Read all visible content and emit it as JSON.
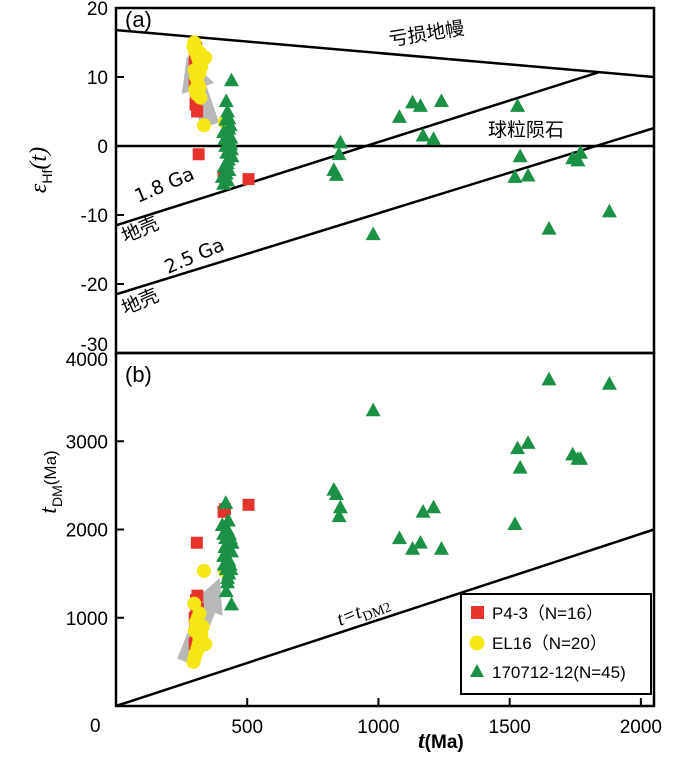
{
  "chart_data": [
    {
      "type": "scatter",
      "panel_label": "(a)",
      "xlim": [
        0,
        2050
      ],
      "ylim": [
        -30,
        20
      ],
      "yticks": [
        20,
        10,
        0,
        -10,
        -20,
        -30
      ],
      "ylabel": {
        "main": "ε",
        "sub": "Hf",
        "paren": "(t)"
      },
      "reference_lines": [
        {
          "id": "depleted-mantle",
          "label": "亏损地幔",
          "x": [
            0,
            2050
          ],
          "y": [
            16.8,
            10.0
          ]
        },
        {
          "id": "chur",
          "label": "球粒陨石",
          "x": [
            0,
            2050
          ],
          "y": [
            0,
            0
          ]
        },
        {
          "id": "crust-1-8",
          "label": "1.8 Ga",
          "label2": "地壳",
          "x": [
            0,
            1840
          ],
          "y": [
            -11.5,
            10.7
          ]
        },
        {
          "id": "crust-2-5",
          "label": "2.5 Ga",
          "label2": "地壳",
          "x": [
            0,
            2050
          ],
          "y": [
            -21.5,
            2.6
          ]
        }
      ],
      "series": [
        {
          "name": "P4-3（N=16）",
          "marker": "square",
          "color": "#e8332d",
          "x": [
            302,
            305,
            308,
            300,
            306,
            303,
            309,
            305,
            310,
            315,
            410,
            505,
            305,
            308,
            300,
            304
          ],
          "y": [
            13.5,
            12,
            11,
            9,
            7,
            6,
            5,
            10,
            8,
            -1.2,
            -4.3,
            -4.8,
            14.2,
            8.5,
            12.5,
            6.8
          ]
        },
        {
          "name": "EL16（N=20）",
          "marker": "circle",
          "color": "#f5e616",
          "x": [
            295,
            300,
            305,
            310,
            315,
            320,
            325,
            300,
            330,
            305,
            312,
            318,
            308,
            322,
            302,
            335,
            340,
            415,
            298,
            318
          ],
          "y": [
            14.5,
            13.8,
            14.2,
            13,
            12.5,
            13.5,
            11.5,
            11,
            12.8,
            10,
            9,
            8.5,
            7.5,
            7,
            8.2,
            3,
            12.8,
            3.5,
            15,
            10.5
          ],
          "note": "yellow circles overlap the red squares near 300 Ma"
        },
        {
          "name": "170712-12(N=45)",
          "marker": "triangle",
          "color": "#1a9144",
          "x": [
            440,
            420,
            425,
            430,
            435,
            410,
            415,
            418,
            422,
            428,
            432,
            436,
            440,
            412,
            420,
            425,
            430,
            438,
            442,
            418,
            424,
            430,
            436,
            405,
            410,
            830,
            840,
            855,
            850,
            980,
            1080,
            1130,
            1160,
            1170,
            1210,
            1240,
            1530,
            1540,
            1520,
            1570,
            1650,
            1740,
            1760,
            1770,
            1880
          ],
          "y": [
            9.5,
            6.5,
            5,
            4,
            3,
            2,
            1,
            0,
            -1,
            -2,
            1.5,
            0.5,
            -0.5,
            -3,
            -4,
            -5,
            2.5,
            1.2,
            -1.5,
            3.8,
            -2.5,
            -3.5,
            0.2,
            -4.5,
            -5.5,
            -3.5,
            -4.2,
            0.5,
            -1.2,
            -12.8,
            4.2,
            6.3,
            5.8,
            1.5,
            1.0,
            6.5,
            5.8,
            -1.5,
            -4.5,
            -4.3,
            -12,
            -1.8,
            -2.1,
            -1.0,
            -9.5
          ]
        }
      ],
      "trend_arrow": {
        "color": "#b8b8b8",
        "from": [
          360,
          3
        ],
        "to": [
          270,
          13
        ]
      }
    },
    {
      "type": "scatter",
      "panel_label": "(b)",
      "xlim": [
        0,
        2050
      ],
      "ylim": [
        0,
        4000
      ],
      "yticks": [
        4000,
        3000,
        2000,
        1000,
        0
      ],
      "xticks": [
        500,
        1000,
        1500,
        2000
      ],
      "xlabel": {
        "main": "t",
        "unit": "(Ma)"
      },
      "ylabel": {
        "main": "t",
        "sub": "DM",
        "unit": "(Ma)"
      },
      "reference_lines": [
        {
          "id": "t-equals-tdm2",
          "label": "t=t",
          "label_sub": "DM2",
          "x": [
            0,
            2050
          ],
          "y": [
            0,
            2000
          ]
        }
      ],
      "series": [
        {
          "name": "P4-3（N=16）",
          "marker": "square",
          "color": "#e8332d",
          "x": [
            308,
            310,
            305,
            312,
            300,
            306,
            302,
            309,
            305,
            304,
            410,
            415,
            505,
            300,
            308,
            306
          ],
          "y": [
            1850,
            1250,
            1200,
            1100,
            1000,
            950,
            900,
            850,
            800,
            750,
            2200,
            2230,
            2280,
            700,
            650,
            1050
          ]
        },
        {
          "name": "EL16（N=20）",
          "marker": "circle",
          "color": "#f5e616",
          "x": [
            295,
            300,
            305,
            310,
            315,
            320,
            325,
            300,
            330,
            305,
            312,
            318,
            308,
            322,
            302,
            335,
            340,
            415,
            298,
            318
          ],
          "y": [
            500,
            550,
            600,
            650,
            700,
            750,
            800,
            850,
            900,
            950,
            1000,
            1050,
            620,
            680,
            580,
            1530,
            700,
            1530,
            1160,
            760
          ]
        },
        {
          "name": "170712-12(N=45)",
          "marker": "triangle",
          "color": "#1a9144",
          "x": [
            440,
            420,
            425,
            430,
            435,
            410,
            415,
            418,
            422,
            428,
            432,
            436,
            440,
            412,
            420,
            425,
            430,
            438,
            442,
            418,
            424,
            430,
            436,
            405,
            410,
            830,
            840,
            855,
            850,
            980,
            1080,
            1130,
            1160,
            1170,
            1210,
            1240,
            1530,
            1540,
            1520,
            1570,
            1650,
            1740,
            1760,
            1770,
            1880
          ],
          "y": [
            1150,
            1300,
            1400,
            1500,
            1600,
            1700,
            1800,
            1900,
            2000,
            2100,
            1950,
            1850,
            1750,
            1600,
            1550,
            1450,
            1650,
            1550,
            1850,
            2300,
            2000,
            1950,
            1900,
            2050,
            1950,
            2450,
            2400,
            2250,
            2150,
            3350,
            1900,
            1780,
            1850,
            2200,
            2250,
            1780,
            2920,
            2700,
            2060,
            2980,
            3700,
            2850,
            2800,
            2800,
            3650
          ]
        }
      ],
      "trend_arrow": {
        "color": "#b8b8b8",
        "from": [
          265,
          500
        ],
        "to": [
          395,
          1450
        ]
      }
    }
  ],
  "legend": {
    "placement": "bottom-right",
    "items": [
      "P4-3（N=16）",
      "EL16（N=20）",
      "170712-12(N=45)"
    ]
  },
  "x_origin_label": "0"
}
